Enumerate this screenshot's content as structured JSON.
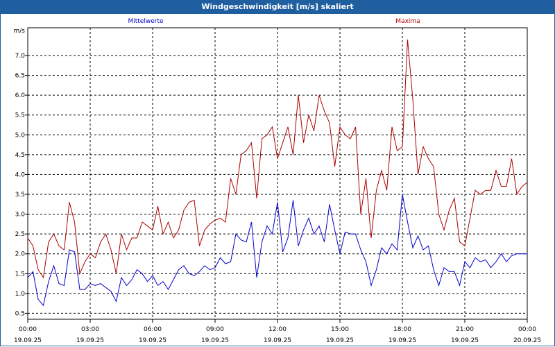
{
  "chart_data": {
    "type": "line",
    "title": "Windgeschwindigkeit [m/s] skaliert",
    "ylabel": "m/s",
    "xlabel": "",
    "ylim": [
      0.35,
      7.7
    ],
    "xlim": [
      0,
      24
    ],
    "y_ticks": [
      "0.5",
      "1.0",
      "1.5",
      "2.0",
      "2.5",
      "3.0",
      "3.5",
      "4.0",
      "4.5",
      "5.0",
      "5.5",
      "6.0",
      "6.5",
      "7.0"
    ],
    "x_ticks": [
      {
        "time": "00:00",
        "date": "19.09.25"
      },
      {
        "time": "03:00",
        "date": "19.09.25"
      },
      {
        "time": "06:00",
        "date": "19.09.25"
      },
      {
        "time": "09:00",
        "date": "19.09.25"
      },
      {
        "time": "12:00",
        "date": "19.09.25"
      },
      {
        "time": "15:00",
        "date": "19.09.25"
      },
      {
        "time": "18:00",
        "date": "19.09.25"
      },
      {
        "time": "21:00",
        "date": "19.09.25"
      },
      {
        "time": "00:00",
        "date": "20.09.25"
      }
    ],
    "grid": true,
    "series": [
      {
        "name": "Mittelwerte",
        "color": "#0000cc",
        "x": [
          0,
          0.25,
          0.5,
          0.75,
          1,
          1.25,
          1.5,
          1.75,
          2,
          2.25,
          2.5,
          2.75,
          3,
          3.25,
          3.5,
          3.75,
          4,
          4.25,
          4.5,
          4.75,
          5,
          5.25,
          5.5,
          5.75,
          6,
          6.25,
          6.5,
          6.75,
          7,
          7.25,
          7.5,
          7.75,
          8,
          8.25,
          8.5,
          8.75,
          9,
          9.25,
          9.5,
          9.75,
          10,
          10.25,
          10.5,
          10.75,
          11,
          11.25,
          11.5,
          11.75,
          12,
          12.25,
          12.5,
          12.75,
          13,
          13.25,
          13.5,
          13.75,
          14,
          14.25,
          14.5,
          14.75,
          15,
          15.25,
          15.5,
          15.75,
          16,
          16.25,
          16.5,
          16.75,
          17,
          17.25,
          17.5,
          17.75,
          18,
          18.25,
          18.5,
          18.75,
          19,
          19.25,
          19.5,
          19.75,
          20,
          20.25,
          20.5,
          20.75,
          21,
          21.25,
          21.5,
          21.75,
          22,
          22.25,
          22.5,
          22.75,
          23,
          23.25,
          23.5,
          23.75,
          24
        ],
        "values": [
          1.4,
          1.55,
          0.85,
          0.7,
          1.3,
          1.7,
          1.25,
          1.2,
          2.1,
          2.05,
          1.1,
          1.1,
          1.25,
          1.2,
          1.25,
          1.15,
          1.05,
          0.8,
          1.4,
          1.2,
          1.35,
          1.6,
          1.5,
          1.3,
          1.45,
          1.2,
          1.3,
          1.1,
          1.35,
          1.6,
          1.7,
          1.5,
          1.45,
          1.55,
          1.7,
          1.6,
          1.65,
          1.9,
          1.75,
          1.8,
          2.5,
          2.35,
          2.3,
          2.8,
          1.4,
          2.3,
          2.7,
          2.5,
          3.3,
          2.05,
          2.4,
          3.35,
          2.2,
          2.6,
          2.9,
          2.5,
          2.7,
          2.3,
          3.25,
          2.6,
          2.0,
          2.55,
          2.5,
          2.5,
          2.1,
          1.8,
          1.2,
          1.6,
          2.15,
          2.0,
          2.25,
          2.1,
          3.5,
          2.8,
          2.15,
          2.45,
          2.1,
          2.2,
          1.6,
          1.2,
          1.65,
          1.55,
          1.55,
          1.2,
          1.8,
          1.65,
          1.9,
          1.8,
          1.85,
          1.65,
          1.8,
          2.0,
          1.8,
          1.95,
          2.0,
          2.0,
          2.0
        ]
      },
      {
        "name": "Maxima",
        "color": "#aa0000",
        "x": [
          0,
          0.25,
          0.5,
          0.75,
          1,
          1.25,
          1.5,
          1.75,
          2,
          2.25,
          2.5,
          2.75,
          3,
          3.25,
          3.5,
          3.75,
          4,
          4.25,
          4.5,
          4.75,
          5,
          5.25,
          5.5,
          5.75,
          6,
          6.25,
          6.5,
          6.75,
          7,
          7.25,
          7.5,
          7.75,
          8,
          8.25,
          8.5,
          8.75,
          9,
          9.25,
          9.5,
          9.75,
          10,
          10.25,
          10.5,
          10.75,
          11,
          11.25,
          11.5,
          11.75,
          12,
          12.25,
          12.5,
          12.75,
          13,
          13.25,
          13.5,
          13.75,
          14,
          14.25,
          14.5,
          14.75,
          15,
          15.25,
          15.5,
          15.75,
          16,
          16.25,
          16.5,
          16.75,
          17,
          17.25,
          17.5,
          17.75,
          18,
          18.25,
          18.5,
          18.75,
          19,
          19.25,
          19.5,
          19.75,
          20,
          20.25,
          20.5,
          20.75,
          21,
          21.25,
          21.5,
          21.75,
          22,
          22.25,
          22.5,
          22.75,
          23,
          23.25,
          23.5,
          23.75,
          24
        ],
        "values": [
          2.4,
          2.2,
          1.6,
          1.4,
          2.3,
          2.5,
          2.2,
          2.1,
          3.3,
          2.8,
          1.5,
          1.8,
          2.0,
          1.9,
          2.3,
          2.5,
          2.1,
          1.5,
          2.5,
          2.1,
          2.4,
          2.4,
          2.8,
          2.7,
          2.6,
          3.2,
          2.5,
          2.8,
          2.4,
          2.6,
          3.1,
          3.3,
          3.35,
          2.2,
          2.6,
          2.75,
          2.85,
          2.9,
          2.8,
          3.9,
          3.5,
          4.5,
          4.6,
          4.8,
          3.4,
          4.9,
          5.0,
          5.2,
          4.4,
          4.8,
          5.2,
          4.5,
          6.0,
          4.8,
          5.5,
          5.1,
          6.0,
          5.6,
          5.3,
          4.2,
          5.2,
          5.0,
          4.9,
          5.2,
          3.0,
          3.9,
          2.4,
          3.6,
          4.1,
          3.6,
          5.2,
          4.6,
          4.7,
          7.4,
          5.9,
          4.0,
          4.7,
          4.4,
          4.2,
          3.0,
          2.6,
          3.1,
          3.4,
          2.3,
          2.2,
          2.9,
          3.6,
          3.5,
          3.6,
          3.6,
          4.1,
          3.7,
          3.7,
          4.4,
          3.5,
          3.7,
          3.8
        ]
      }
    ]
  }
}
